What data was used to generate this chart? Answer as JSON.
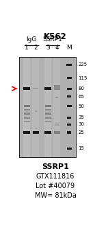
{
  "title": "K562",
  "footer_lines": [
    "SSRP1",
    "GTX111816",
    "Lot #40079",
    "MW= 81kDa"
  ],
  "group_labels": [
    "IgG",
    "SSRP1"
  ],
  "lane_labels": [
    "1",
    "2",
    "3",
    "4",
    "M"
  ],
  "mw_markers": [
    225,
    115,
    80,
    65,
    50,
    35,
    30,
    25,
    15
  ],
  "bg_color": "#b0b0b0",
  "arrow_color": "red",
  "band_dark": "#181818",
  "band_med": "#4a4a4a",
  "band_light": "#808080"
}
